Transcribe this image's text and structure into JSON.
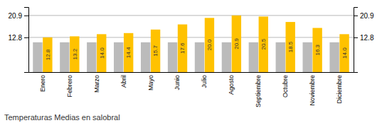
{
  "chart_data": {
    "type": "bar",
    "title": "Temperaturas Medias en salobral",
    "categories": [
      "Enero",
      "Febrero",
      "Marzo",
      "Abril",
      "Mayo",
      "Junio",
      "Julio",
      "Agosto",
      "Septiembre",
      "Octubre",
      "Noviembre",
      "Diciembre"
    ],
    "series": [
      {
        "color": "#BBBBBB",
        "values": [
          11.0,
          11.0,
          11.0,
          11.0,
          11.0,
          11.0,
          11.0,
          11.0,
          11.0,
          11.0,
          11.0,
          11.0
        ]
      },
      {
        "color": "#FFC200",
        "values": [
          12.8,
          13.2,
          14.0,
          14.4,
          15.7,
          17.6,
          20.0,
          20.9,
          20.5,
          18.5,
          16.3,
          14.0
        ],
        "value_labels": [
          "12.8",
          "13.2",
          "14.0",
          "14.4",
          "15.7",
          "17.6",
          "20.0",
          "20.9",
          "20.5",
          "18.5",
          "16.3",
          "14.0"
        ]
      }
    ],
    "ylim": [
      0,
      24
    ],
    "yticks": [
      12.8,
      20.9
    ],
    "y2lim": [
      0,
      24
    ],
    "y2ticks": [
      12.8,
      20.9
    ],
    "grid": true,
    "data_labels": true
  }
}
